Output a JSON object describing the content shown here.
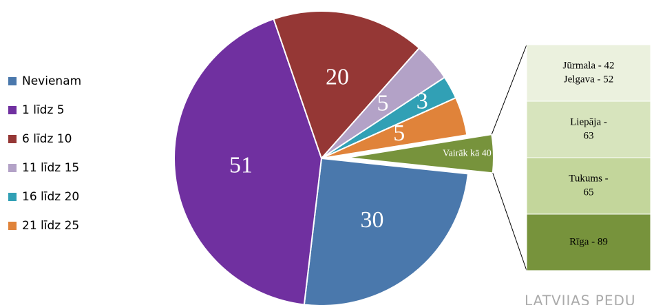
{
  "chart_data": {
    "type": "pie-of-bar",
    "categories": [
      "Nevienam",
      "1 līdz 5",
      "6 līdz 10",
      "11 līdz 15",
      "16 līdz 20",
      "21 līdz 25"
    ],
    "values": [
      30,
      51,
      20,
      5,
      3,
      5
    ],
    "colors": [
      "#4a78ac",
      "#7030a0",
      "#953735",
      "#b3a2c7",
      "#31a0b5",
      "#e0833a"
    ],
    "other": {
      "label": "Vairāk kā 40",
      "value": 5,
      "color": "#77933c",
      "breakdown": [
        {
          "lines": [
            "Jūrmala - 42",
            "Jelgava - 52"
          ],
          "color": "#ebf1de"
        },
        {
          "lines": [
            "Liepāja -",
            "63"
          ],
          "color": "#d7e4bd"
        },
        {
          "lines": [
            "Tukums -",
            "65"
          ],
          "color": "#c3d69b"
        },
        {
          "lines": [
            "Rīga - 89"
          ],
          "color": "#77933c"
        }
      ]
    },
    "legend": "left",
    "footer": "LATVIJAS PEDU"
  }
}
